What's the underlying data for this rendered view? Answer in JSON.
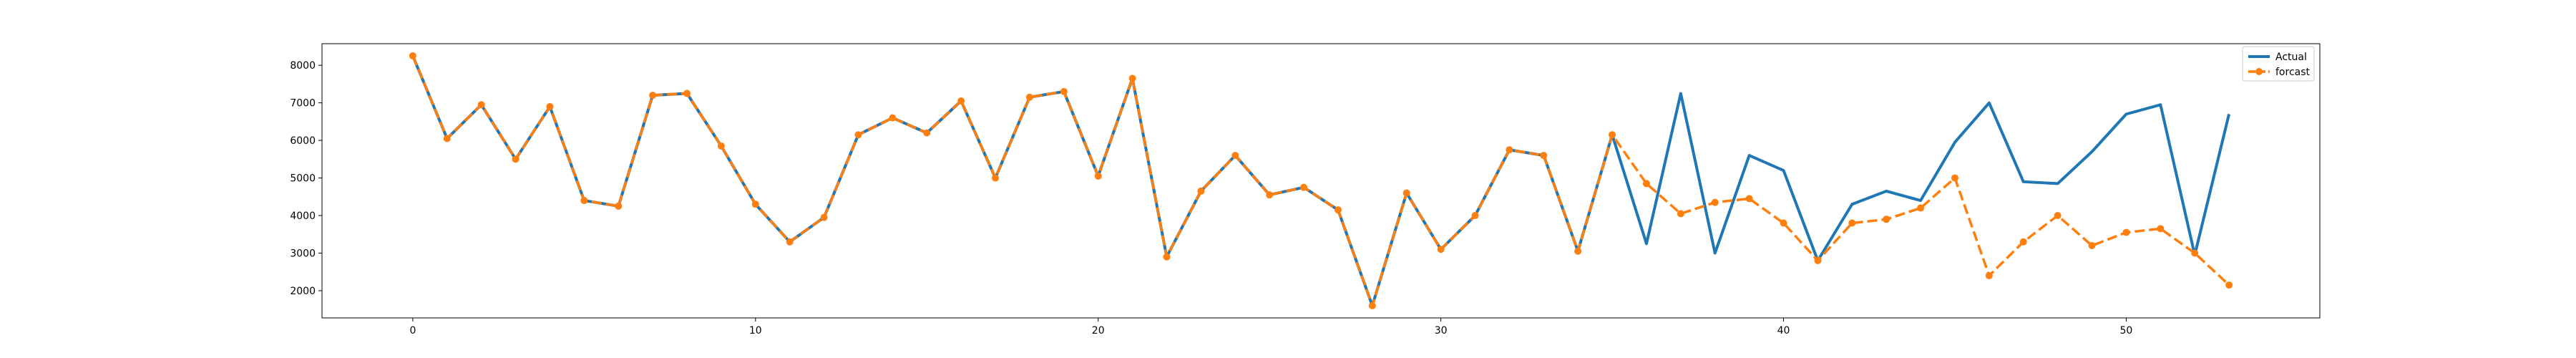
{
  "chart_data": {
    "type": "line",
    "x": [
      0,
      1,
      2,
      3,
      4,
      5,
      6,
      7,
      8,
      9,
      10,
      11,
      12,
      13,
      14,
      15,
      16,
      17,
      18,
      19,
      20,
      21,
      22,
      23,
      24,
      25,
      26,
      27,
      28,
      29,
      30,
      31,
      32,
      33,
      34,
      35,
      36,
      37,
      38,
      39,
      40,
      41,
      42,
      43,
      44,
      45,
      46,
      47,
      48,
      49,
      50,
      51,
      52,
      53
    ],
    "series": [
      {
        "name": "Actual",
        "color": "#1f77b4",
        "style": "solid",
        "values": [
          8250,
          6050,
          6950,
          5500,
          6900,
          4400,
          4250,
          7200,
          7250,
          5850,
          4300,
          3300,
          3950,
          6150,
          6600,
          6200,
          7050,
          5000,
          7150,
          7300,
          5050,
          7650,
          2900,
          4650,
          5600,
          4550,
          4750,
          4150,
          1600,
          4600,
          3100,
          4000,
          5750,
          5600,
          3050,
          6150,
          3250,
          7250,
          3000,
          5600,
          5200,
          2800,
          4300,
          4650,
          4400,
          5950,
          7000,
          4900,
          4850,
          5700,
          6700,
          6950,
          2950,
          6700
        ]
      },
      {
        "name": "forcast",
        "color": "#ff7f0e",
        "style": "dashed",
        "marker": "circle",
        "values": [
          8250,
          6050,
          6950,
          5500,
          6900,
          4400,
          4250,
          7200,
          7250,
          5850,
          4300,
          3300,
          3950,
          6150,
          6600,
          6200,
          7050,
          5000,
          7150,
          7300,
          5050,
          7650,
          2900,
          4650,
          5600,
          4550,
          4750,
          4150,
          1600,
          4600,
          3100,
          4000,
          5750,
          5600,
          3050,
          6150,
          4850,
          4050,
          4350,
          4450,
          3800,
          2800,
          3800,
          3900,
          4200,
          5000,
          2400,
          3300,
          4000,
          3200,
          3550,
          3650,
          3000,
          2150
        ]
      }
    ],
    "xticks": [
      0,
      10,
      20,
      30,
      40,
      50
    ],
    "yticks": [
      2000,
      3000,
      4000,
      5000,
      6000,
      7000,
      8000
    ],
    "xlim": [
      -2.65,
      55.65
    ],
    "ylim": [
      1275,
      8575
    ],
    "grid": false,
    "legend_position": "top-right"
  }
}
